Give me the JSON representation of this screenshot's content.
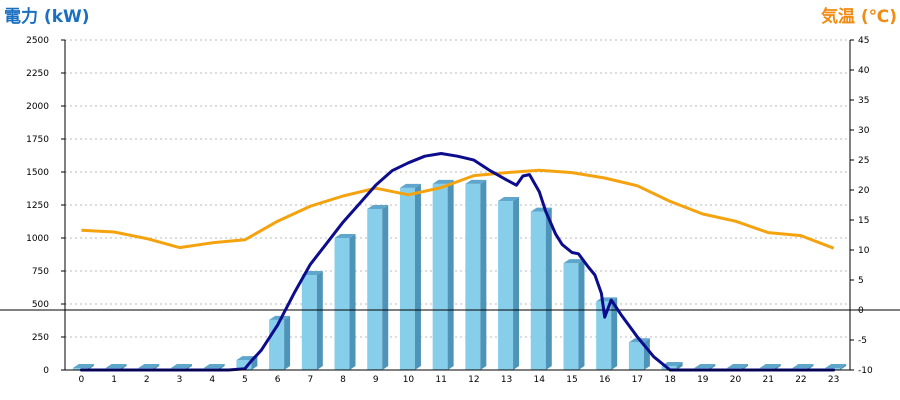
{
  "chart_data": {
    "type": "bar",
    "title": "",
    "ylabel": "電力 (kW)",
    "y2label": "気温 (℃)",
    "xlabel": "",
    "grid": true,
    "ylim": [
      0,
      2500
    ],
    "y2lim": [
      -10,
      45
    ],
    "yticks": [
      0,
      250,
      500,
      750,
      1000,
      1250,
      1500,
      1750,
      2000,
      2250,
      2500
    ],
    "y2ticks": [
      -10,
      -5,
      0,
      5,
      10,
      15,
      20,
      25,
      30,
      35,
      40,
      45
    ],
    "categories": [
      "0",
      "1",
      "2",
      "3",
      "4",
      "5",
      "6",
      "7",
      "8",
      "9",
      "10",
      "11",
      "12",
      "13",
      "14",
      "15",
      "16",
      "17",
      "18",
      "19",
      "20",
      "21",
      "22",
      "23"
    ],
    "series": [
      {
        "kind": "bar",
        "axis": "left",
        "color": "#87ceeb",
        "values": [
          15,
          15,
          15,
          15,
          15,
          75,
          380,
          720,
          1000,
          1220,
          1380,
          1410,
          1410,
          1280,
          1200,
          810,
          520,
          210,
          30,
          15,
          15,
          15,
          15,
          15
        ]
      },
      {
        "kind": "line",
        "axis": "left",
        "color": "#0c0c8c",
        "x": [
          0,
          1,
          2,
          3,
          4,
          4.5,
          5,
          5.2,
          5.5,
          6,
          6.5,
          7,
          7.5,
          8,
          8.5,
          9,
          9.5,
          10,
          10.5,
          11,
          11.5,
          12,
          12.5,
          13,
          13.3,
          13.5,
          13.7,
          14,
          14.2,
          14.5,
          14.7,
          15,
          15.2,
          15.5,
          15.7,
          15.9,
          16,
          16.2,
          16.5,
          17,
          17.5,
          18,
          19,
          20,
          21,
          22,
          23
        ],
        "y": [
          0,
          0,
          0,
          0,
          0,
          0,
          10,
          70,
          150,
          340,
          580,
          800,
          960,
          1120,
          1260,
          1400,
          1510,
          1570,
          1620,
          1640,
          1620,
          1590,
          1510,
          1440,
          1400,
          1470,
          1480,
          1350,
          1200,
          1030,
          950,
          890,
          880,
          780,
          720,
          580,
          400,
          530,
          420,
          250,
          100,
          0,
          0,
          0,
          0,
          0,
          0
        ]
      },
      {
        "kind": "line",
        "axis": "right",
        "color": "#f5a20f",
        "values": [
          13.3,
          13.0,
          11.9,
          10.4,
          11.2,
          11.7,
          14.8,
          17.3,
          19.0,
          20.3,
          19.2,
          20.4,
          22.4,
          22.9,
          23.3,
          22.9,
          22.0,
          20.7,
          18.1,
          16.0,
          14.8,
          12.9,
          12.4,
          10.3
        ]
      }
    ],
    "reference_line": {
      "axis": "right",
      "value": 0,
      "color": "#000000"
    },
    "colors": {
      "grid": "#bbbbbb",
      "axis": "#000000",
      "bar_front": "#87ceeb",
      "bar_side": "#4e94b8",
      "bar_top": "#5fa6cc"
    }
  }
}
